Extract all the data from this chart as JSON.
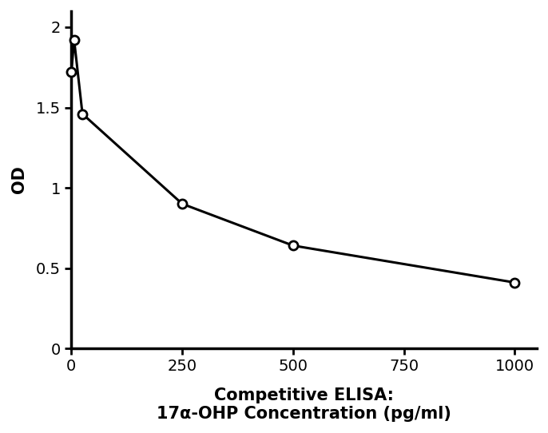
{
  "x": [
    0,
    6.25,
    25,
    250,
    500,
    1000
  ],
  "y": [
    1.72,
    1.92,
    1.46,
    0.9,
    0.64,
    0.41
  ],
  "line_color": "#000000",
  "line_width": 2.2,
  "marker": "o",
  "marker_size": 8,
  "marker_facecolor": "#ffffff",
  "marker_edgecolor": "#000000",
  "marker_edgewidth": 2.0,
  "ylabel": "OD",
  "xlabel_line1": "Competitive ELISA:",
  "xlabel_line2": "17α-OHP Concentration (pg/ml)",
  "xlim": [
    0,
    1050
  ],
  "ylim": [
    0,
    2.1
  ],
  "yticks": [
    0,
    0.5,
    1,
    1.5,
    2
  ],
  "ytick_labels": [
    "0",
    "0.5",
    "1",
    "1.5",
    "2"
  ],
  "xticks": [
    0,
    250,
    500,
    750,
    1000
  ],
  "xtick_labels": [
    "0",
    "250",
    "500",
    "750",
    "1000"
  ],
  "spine_linewidth": 2.5,
  "xlabel_fontsize": 15,
  "ylabel_fontsize": 15,
  "tick_fontsize": 14,
  "background_color": "#ffffff",
  "fig_width": 6.86,
  "fig_height": 5.42,
  "dpi": 100
}
